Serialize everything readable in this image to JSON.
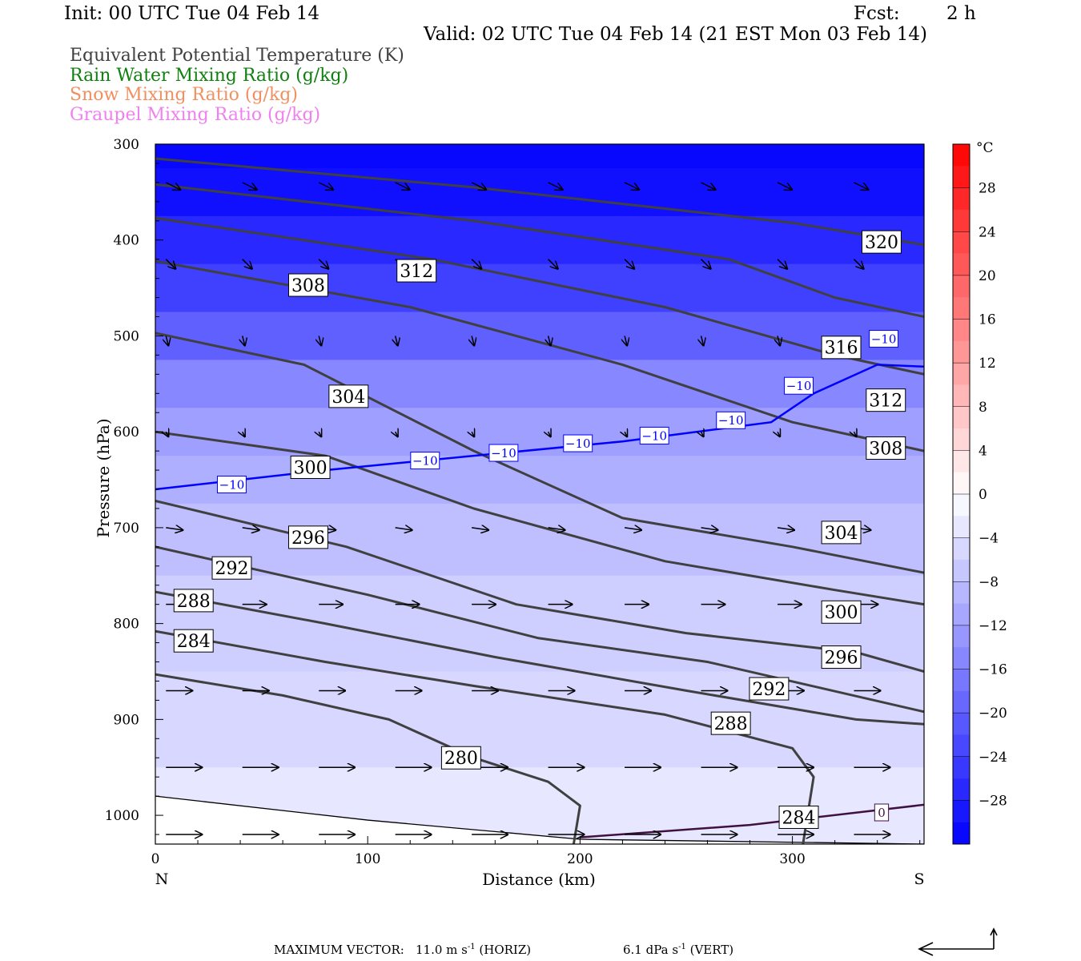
{
  "header": {
    "init": "Init: 00 UTC Tue 04 Feb 14",
    "fcst_label": "Fcst:",
    "fcst_value": "2 h",
    "valid": "Valid: 02 UTC Tue 04 Feb 14 (21 EST Mon 03 Feb 14)"
  },
  "legend": [
    {
      "text": "Equivalent Potential Temperature (K)",
      "color": "#404040"
    },
    {
      "text": "Rain Water Mixing Ratio (g/kg)",
      "color": "#108010"
    },
    {
      "text": "Snow Mixing Ratio (g/kg)",
      "color": "#f09060"
    },
    {
      "text": "Graupel Mixing Ratio (g/kg)",
      "color": "#f080f0"
    }
  ],
  "footer": {
    "max_vector_label": "MAXIMUM VECTOR:",
    "horiz": "11.0 m s",
    "horiz_exp": "-1",
    "horiz_unit": "(HORIZ)",
    "vert": "6.1 dPa s",
    "vert_exp": "-1",
    "vert_unit": "(VERT)"
  },
  "chart_data": {
    "type": "cross-section",
    "xlabel": "Distance (km)",
    "ylabel": "Pressure (hPa)",
    "xlim": [
      0,
      362
    ],
    "ylim": [
      1030,
      300
    ],
    "x_ticks": [
      0,
      100,
      200,
      300
    ],
    "y_ticks": [
      300,
      400,
      500,
      600,
      700,
      800,
      900,
      1000
    ],
    "endpoints": {
      "left": "N",
      "right": "S"
    },
    "colorbar": {
      "unit": "°C",
      "ticks": [
        28,
        24,
        20,
        16,
        12,
        8,
        4,
        0,
        -4,
        -8,
        -12,
        -16,
        -20,
        -24,
        -28
      ],
      "range": [
        -32,
        32
      ],
      "cold_color": "#0000ff",
      "warm_color": "#ff0000"
    },
    "temperature_field": [
      {
        "p": 300,
        "t": -31
      },
      {
        "p": 350,
        "t": -30
      },
      {
        "p": 400,
        "t": -27
      },
      {
        "p": 450,
        "t": -24
      },
      {
        "p": 500,
        "t": -20
      },
      {
        "p": 550,
        "t": -15
      },
      {
        "p": 600,
        "t": -12
      },
      {
        "p": 650,
        "t": -10
      },
      {
        "p": 700,
        "t": -8
      },
      {
        "p": 800,
        "t": -6
      },
      {
        "p": 900,
        "t": -5
      },
      {
        "p": 1000,
        "t": -3
      }
    ],
    "theta_e_isolines": [
      {
        "value": 280,
        "points": [
          [
            0,
            853
          ],
          [
            60,
            875
          ],
          [
            110,
            900
          ],
          [
            150,
            940
          ],
          [
            185,
            965
          ],
          [
            200,
            990
          ],
          [
            197,
            1030
          ]
        ]
      },
      {
        "value": 284,
        "points": [
          [
            0,
            808
          ],
          [
            80,
            840
          ],
          [
            150,
            865
          ],
          [
            240,
            895
          ],
          [
            300,
            930
          ],
          [
            310,
            960
          ],
          [
            305,
            1030
          ]
        ]
      },
      {
        "value": 288,
        "points": [
          [
            0,
            767
          ],
          [
            80,
            800
          ],
          [
            160,
            835
          ],
          [
            250,
            870
          ],
          [
            330,
            900
          ],
          [
            362,
            905
          ]
        ]
      },
      {
        "value": 292,
        "points": [
          [
            0,
            720
          ],
          [
            100,
            770
          ],
          [
            180,
            815
          ],
          [
            260,
            840
          ],
          [
            362,
            892
          ]
        ]
      },
      {
        "value": 296,
        "points": [
          [
            0,
            672
          ],
          [
            90,
            720
          ],
          [
            170,
            780
          ],
          [
            250,
            810
          ],
          [
            330,
            830
          ],
          [
            362,
            850
          ]
        ]
      },
      {
        "value": 300,
        "points": [
          [
            0,
            600
          ],
          [
            80,
            625
          ],
          [
            150,
            680
          ],
          [
            240,
            735
          ],
          [
            320,
            765
          ],
          [
            362,
            780
          ]
        ]
      },
      {
        "value": 304,
        "points": [
          [
            0,
            497
          ],
          [
            70,
            530
          ],
          [
            150,
            620
          ],
          [
            220,
            690
          ],
          [
            300,
            720
          ],
          [
            362,
            747
          ]
        ]
      },
      {
        "value": 308,
        "points": [
          [
            0,
            422
          ],
          [
            120,
            470
          ],
          [
            220,
            530
          ],
          [
            300,
            590
          ],
          [
            362,
            620
          ]
        ]
      },
      {
        "value": 312,
        "points": [
          [
            0,
            377
          ],
          [
            130,
            420
          ],
          [
            240,
            470
          ],
          [
            320,
            520
          ],
          [
            362,
            540
          ]
        ]
      },
      {
        "value": 316,
        "points": [
          [
            0,
            342
          ],
          [
            150,
            380
          ],
          [
            270,
            420
          ],
          [
            320,
            460
          ],
          [
            362,
            480
          ]
        ]
      },
      {
        "value": 320,
        "points": [
          [
            0,
            315
          ],
          [
            150,
            345
          ],
          [
            300,
            382
          ],
          [
            362,
            405
          ]
        ]
      }
    ],
    "theta_e_labels": [
      {
        "text": "320",
        "x": 342,
        "p": 402
      },
      {
        "text": "316",
        "x": 323,
        "p": 512
      },
      {
        "text": "312",
        "x": 123,
        "p": 432
      },
      {
        "text": "312",
        "x": 344,
        "p": 567
      },
      {
        "text": "308",
        "x": 72,
        "p": 447
      },
      {
        "text": "308",
        "x": 344,
        "p": 617
      },
      {
        "text": "304",
        "x": 91,
        "p": 563
      },
      {
        "text": "304",
        "x": 323,
        "p": 705
      },
      {
        "text": "300",
        "x": 73,
        "p": 637
      },
      {
        "text": "300",
        "x": 323,
        "p": 788
      },
      {
        "text": "296",
        "x": 72,
        "p": 710
      },
      {
        "text": "296",
        "x": 323,
        "p": 835
      },
      {
        "text": "292",
        "x": 36,
        "p": 742
      },
      {
        "text": "292",
        "x": 289,
        "p": 868
      },
      {
        "text": "288",
        "x": 18,
        "p": 776
      },
      {
        "text": "288",
        "x": 271,
        "p": 904
      },
      {
        "text": "284",
        "x": 18,
        "p": 818
      },
      {
        "text": "284",
        "x": 303,
        "p": 1002
      },
      {
        "text": "280",
        "x": 144,
        "p": 940
      }
    ],
    "isotherm": {
      "value": -10,
      "color": "#0000ff",
      "points": [
        [
          0,
          660
        ],
        [
          80,
          640
        ],
        [
          150,
          625
        ],
        [
          220,
          610
        ],
        [
          290,
          590
        ],
        [
          310,
          560
        ],
        [
          340,
          530
        ],
        [
          362,
          532
        ]
      ]
    },
    "isotherm_labels": [
      {
        "text": "−10",
        "x": 36,
        "p": 655
      },
      {
        "text": "−10",
        "x": 127,
        "p": 630
      },
      {
        "text": "−10",
        "x": 164,
        "p": 622
      },
      {
        "text": "−10",
        "x": 199,
        "p": 612
      },
      {
        "text": "−10",
        "x": 235,
        "p": 604
      },
      {
        "text": "−10",
        "x": 271,
        "p": 588
      },
      {
        "text": "−10",
        "x": 303,
        "p": 552
      },
      {
        "text": "−10",
        "x": 343,
        "p": 503
      }
    ],
    "freezing_line": {
      "value": 0,
      "color": "#401040",
      "points": [
        [
          200,
          1023
        ],
        [
          280,
          1010
        ],
        [
          362,
          989
        ]
      ]
    },
    "freezing_label": {
      "text": "0",
      "x": 342,
      "p": 997
    },
    "surface": [
      [
        0,
        980
      ],
      [
        100,
        1005
      ],
      [
        200,
        1025
      ],
      [
        362,
        1030
      ]
    ],
    "wind_vectors": [
      {
        "p": 340,
        "u": 0.3,
        "w": -0.15
      },
      {
        "p": 420,
        "u": 0.2,
        "w": -0.2
      },
      {
        "p": 500,
        "u": 0.05,
        "w": -0.2
      },
      {
        "p": 600,
        "u": 0.05,
        "w": -0.1
      },
      {
        "p": 700,
        "u": 0.35,
        "w": -0.05
      },
      {
        "p": 780,
        "u": 0.5,
        "w": 0
      },
      {
        "p": 870,
        "u": 0.55,
        "w": 0
      },
      {
        "p": 950,
        "u": 0.75,
        "w": 0
      },
      {
        "p": 1020,
        "u": 0.75,
        "w": 0
      }
    ]
  }
}
